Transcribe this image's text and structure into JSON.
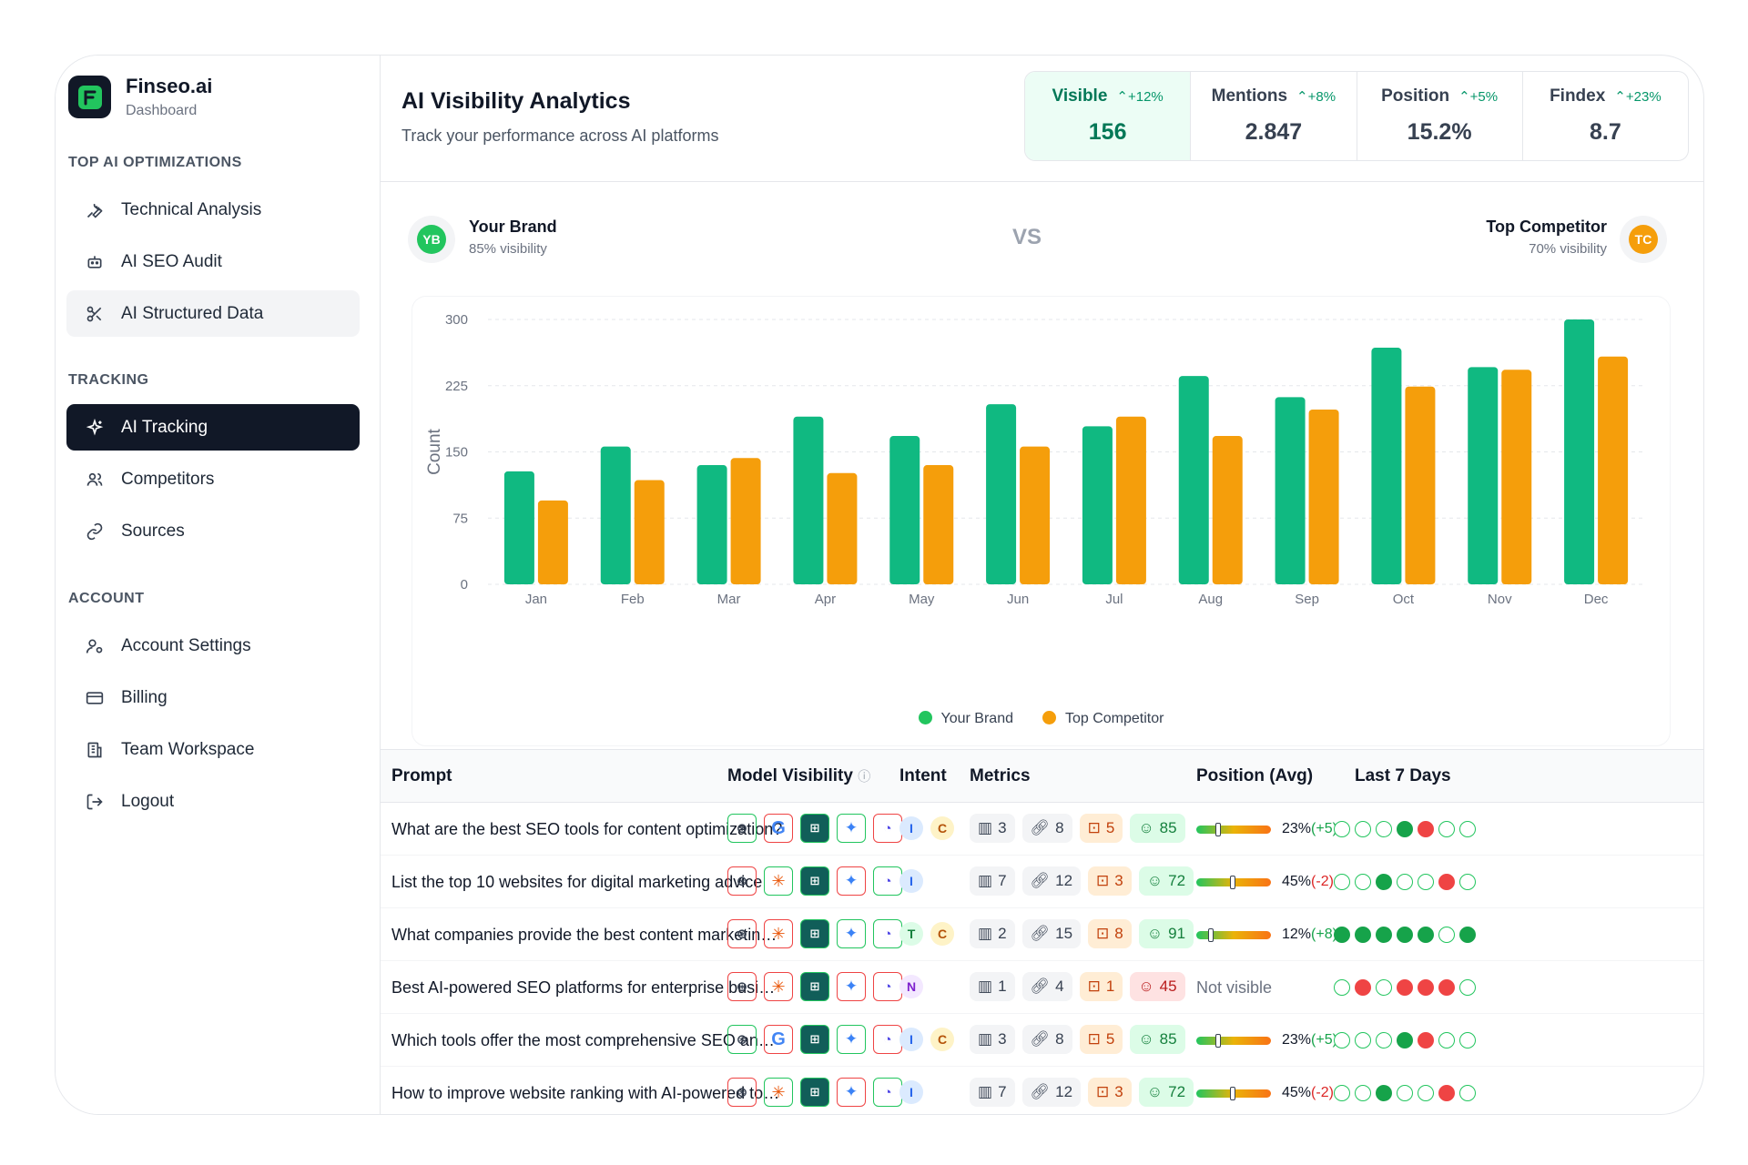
{
  "sidebar": {
    "brand_name": "Finseo.ai",
    "brand_sub": "Dashboard",
    "sections": [
      {
        "title": "TOP AI OPTIMIZATIONS",
        "items": [
          {
            "label": "Technical Analysis",
            "icon": "wrench-icon"
          },
          {
            "label": "AI SEO Audit",
            "icon": "bot-icon"
          },
          {
            "label": "AI Structured Data",
            "icon": "scissors-icon"
          }
        ]
      },
      {
        "title": "TRACKING",
        "items": [
          {
            "label": "AI Tracking",
            "icon": "sparkle-icon"
          },
          {
            "label": "Competitors",
            "icon": "users-icon"
          },
          {
            "label": "Sources",
            "icon": "link-icon"
          }
        ]
      },
      {
        "title": "ACCOUNT",
        "items": [
          {
            "label": "Account Settings",
            "icon": "user-settings-icon"
          },
          {
            "label": "Billing",
            "icon": "credit-card-icon"
          },
          {
            "label": "Team Workspace",
            "icon": "building-icon"
          },
          {
            "label": "Logout",
            "icon": "logout-icon"
          }
        ]
      }
    ]
  },
  "header": {
    "title": "AI Visibility Analytics",
    "subtitle": "Track your performance across AI platforms",
    "stats": [
      {
        "label": "Visible",
        "change": "+12%",
        "value": "156"
      },
      {
        "label": "Mentions",
        "change": "+8%",
        "value": "2.847"
      },
      {
        "label": "Position",
        "change": "+5%",
        "value": "15.2%"
      },
      {
        "label": "Findex",
        "change": "+23%",
        "value": "8.7"
      }
    ]
  },
  "compare": {
    "brand": {
      "initials": "YB",
      "name": "Your Brand",
      "sub": "85% visibility",
      "color": "#22c55e"
    },
    "vs": "VS",
    "competitor": {
      "initials": "TC",
      "name": "Top Competitor",
      "sub": "70% visibility",
      "color": "#f59e0b"
    }
  },
  "chart_data": {
    "type": "bar",
    "categories": [
      "Jan",
      "Feb",
      "Mar",
      "Apr",
      "May",
      "Jun",
      "Jul",
      "Aug",
      "Sep",
      "Oct",
      "Nov",
      "Dec"
    ],
    "series": [
      {
        "name": "Your Brand",
        "color": "#10b981",
        "values": [
          128,
          156,
          135,
          190,
          168,
          204,
          179,
          236,
          212,
          268,
          246,
          300
        ]
      },
      {
        "name": "Top Competitor",
        "color": "#f59e0b",
        "values": [
          95,
          118,
          143,
          126,
          135,
          156,
          190,
          168,
          198,
          224,
          243,
          258
        ]
      }
    ],
    "ylabel": "Count",
    "yticks": [
      0,
      75,
      150,
      225,
      300
    ],
    "ylim": [
      0,
      300
    ],
    "grid": true,
    "legend": "bottom"
  },
  "table": {
    "headers": {
      "prompt": "Prompt",
      "models": "Model Visibility",
      "intent": "Intent",
      "metrics": "Metrics",
      "position": "Position (Avg)",
      "days": "Last 7 Days"
    },
    "rows": [
      {
        "prompt": "What are the best SEO tools for content optimization?",
        "models": [
          "on",
          "off-google",
          "on",
          "on",
          "off"
        ],
        "intent": [
          "I",
          "C"
        ],
        "m": [
          "3",
          "8",
          "5",
          "85"
        ],
        "score_good": true,
        "pos": 23,
        "pos_text": "23%",
        "chg": "(+5)",
        "up": true,
        "days": [
          "e",
          "e",
          "e",
          "g",
          "r",
          "e",
          "e"
        ]
      },
      {
        "prompt": "List the top 10 websites for digital marketing advice",
        "models": [
          "off",
          "on-claude",
          "on",
          "off",
          "on"
        ],
        "intent": [
          "I"
        ],
        "m": [
          "7",
          "12",
          "3",
          "72"
        ],
        "score_good": true,
        "pos": 45,
        "pos_text": "45%",
        "chg": "(-2)",
        "up": false,
        "days": [
          "e",
          "e",
          "g",
          "e",
          "e",
          "r",
          "e"
        ]
      },
      {
        "prompt": "What companies provide the best content marketing services?",
        "models": [
          "off",
          "off-claude",
          "on",
          "on",
          "on"
        ],
        "intent": [
          "T",
          "C"
        ],
        "m": [
          "2",
          "15",
          "8",
          "91"
        ],
        "score_good": true,
        "pos": 12,
        "pos_text": "12%",
        "chg": "(+8)",
        "up": true,
        "days": [
          "g",
          "g",
          "g",
          "g",
          "g",
          "e",
          "g"
        ]
      },
      {
        "prompt": "Best AI-powered SEO platforms for enterprise businesses",
        "models": [
          "off",
          "off-claude",
          "on",
          "off",
          "off"
        ],
        "intent": [
          "N"
        ],
        "m": [
          "1",
          "4",
          "1",
          "45"
        ],
        "score_good": false,
        "pos": null,
        "pos_text": "Not visible",
        "chg": "",
        "up": false,
        "days": [
          "e",
          "r",
          "e",
          "r",
          "r",
          "r",
          "e"
        ]
      },
      {
        "prompt": "Which tools offer the most comprehensive SEO analysis?",
        "models": [
          "on",
          "off-google",
          "on",
          "on",
          "off"
        ],
        "intent": [
          "I",
          "C"
        ],
        "m": [
          "3",
          "8",
          "5",
          "85"
        ],
        "score_good": true,
        "pos": 23,
        "pos_text": "23%",
        "chg": "(+5)",
        "up": true,
        "days": [
          "e",
          "e",
          "e",
          "g",
          "r",
          "e",
          "e"
        ]
      },
      {
        "prompt": "How to improve website ranking with AI-powered tools",
        "models": [
          "off",
          "on-claude",
          "on",
          "off",
          "on"
        ],
        "intent": [
          "I"
        ],
        "m": [
          "7",
          "12",
          "3",
          "72"
        ],
        "score_good": true,
        "pos": 45,
        "pos_text": "45%",
        "chg": "(-2)",
        "up": false,
        "days": [
          "e",
          "e",
          "g",
          "e",
          "e",
          "r",
          "e"
        ]
      }
    ]
  }
}
